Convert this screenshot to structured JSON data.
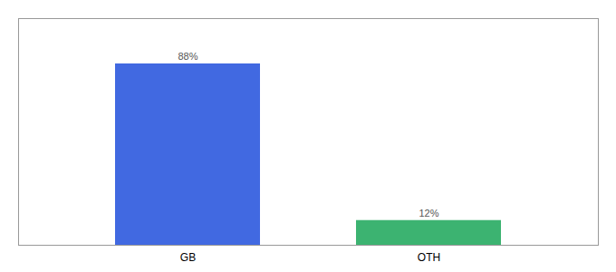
{
  "chart_data": {
    "type": "bar",
    "categories": [
      "GB",
      "OTH"
    ],
    "values": [
      88,
      12
    ],
    "value_labels": [
      "88%",
      "12%"
    ],
    "colors": [
      "#4169E1",
      "#3CB371"
    ],
    "ylim": [
      0,
      110
    ],
    "tick_labels": "x",
    "data_labels": true,
    "grid": false
  }
}
